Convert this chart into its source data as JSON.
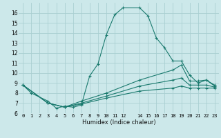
{
  "background_color": "#cce8ea",
  "grid_color": "#aacfd2",
  "line_color": "#1a7a6e",
  "xlabel": "Humidex (Indice chaleur)",
  "xlim": [
    -0.5,
    23.5
  ],
  "ylim": [
    6,
    17
  ],
  "xticks": [
    0,
    1,
    2,
    3,
    4,
    5,
    6,
    7,
    8,
    9,
    10,
    11,
    12,
    14,
    15,
    16,
    17,
    18,
    19,
    20,
    21,
    22,
    23
  ],
  "yticks": [
    6,
    7,
    8,
    9,
    10,
    11,
    12,
    13,
    14,
    15,
    16
  ],
  "series": [
    {
      "x": [
        0,
        1,
        3,
        4,
        5,
        6,
        7,
        8,
        9,
        10,
        11,
        12,
        14,
        15,
        16,
        17,
        18,
        19,
        20,
        21,
        22,
        23
      ],
      "y": [
        8.8,
        8.0,
        7.2,
        6.5,
        6.7,
        6.6,
        6.8,
        9.7,
        10.9,
        13.8,
        15.8,
        16.5,
        16.5,
        15.7,
        13.5,
        12.5,
        11.2,
        11.2,
        9.8,
        9.0,
        9.3,
        8.8
      ]
    },
    {
      "x": [
        0,
        3,
        5,
        7,
        10,
        14,
        18,
        19,
        20,
        21,
        22,
        23
      ],
      "y": [
        8.8,
        7.0,
        6.6,
        7.2,
        8.0,
        9.3,
        10.3,
        10.8,
        9.2,
        9.2,
        9.3,
        8.7
      ]
    },
    {
      "x": [
        0,
        3,
        5,
        7,
        10,
        14,
        18,
        19,
        20,
        21,
        22,
        23
      ],
      "y": [
        8.8,
        7.0,
        6.6,
        7.0,
        7.7,
        8.7,
        9.3,
        9.5,
        8.8,
        8.8,
        8.8,
        8.6
      ]
    },
    {
      "x": [
        0,
        3,
        5,
        7,
        10,
        14,
        18,
        19,
        20,
        21,
        22,
        23
      ],
      "y": [
        8.8,
        7.0,
        6.6,
        6.9,
        7.5,
        8.2,
        8.5,
        8.7,
        8.5,
        8.5,
        8.5,
        8.5
      ]
    }
  ]
}
